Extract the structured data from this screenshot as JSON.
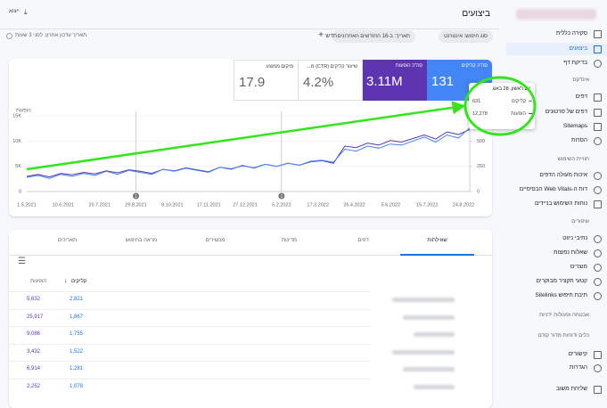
{
  "top_bar": {
    "title": "ביצועים",
    "export": "ייצוא"
  },
  "sidebar": {
    "overview": "סקירה כללית",
    "performance": "ביצועים",
    "url_inspection": "בדיקת דף",
    "index_heading": "אינדקס",
    "pages": "דפים",
    "video_pages": "דפים של סרטונים",
    "sitemaps": "Sitemaps",
    "removals": "הסרות",
    "experience_heading": "חוויית השימוש",
    "page_experience": "איכות מעולה הדפים",
    "core_web_vitals": "דוח ה-Web Vitals הבסיסיים",
    "mobile_usability": "נוחות השימוש בניידים",
    "enhancements_heading": "שיפורים",
    "breadcrumbs": "נתיבי ניווט",
    "faq": "שאלות נפוצות",
    "products": "מוצרים",
    "review_snippets": "קטעי תקציר מבוקרים",
    "sitelinks": "תיבת חיפוש Sitelinks",
    "security": "אבטחה ופעולות ידניות",
    "legacy": "כלים ודוחות מדור קודם",
    "links": "קישורים",
    "settings": "הגדרות",
    "feedback": "שליחת משוב"
  },
  "filters": {
    "search_type": "סוג חיפוש: אינטרנט",
    "date": "תאריך: ב-16 החודשים האחרונים",
    "new": "חדש",
    "last_updated": "תאריך עדכון אחרון: לפני 3 שעות"
  },
  "metrics": [
    {
      "label": "סה\"כ קליקים",
      "value": "131"
    },
    {
      "label": "סה\"כ הופעות",
      "value": "3.11M"
    },
    {
      "label": "שיעור קליקים (CTR) ממוצע",
      "value": "4.2%"
    },
    {
      "label": "מיקום ממוצע",
      "value": "17.9"
    }
  ],
  "chart_data": {
    "type": "line",
    "y_label": "הופעות",
    "x_labels": [
      "1.5.2021",
      "10.6.2021",
      "20.7.2021",
      "29.8.2021",
      "8.10.2021",
      "17.11.2021",
      "27.12.2021",
      "5.2.2022",
      "17.3.2022",
      "26.4.2022",
      "5.6.2022",
      "15.7.2022",
      "24.8.2022"
    ],
    "ylim": [
      0,
      15000
    ],
    "yticks": [
      0,
      {
        "value": 5000,
        "label": "5K"
      },
      {
        "value": 10000,
        "label": "10K"
      },
      {
        "value": 15000,
        "label": "15K"
      }
    ],
    "y2lim": [
      0,
      750
    ],
    "y2ticks": [
      0,
      250,
      500
    ],
    "grid": true,
    "annotations": [
      {
        "x": "29.8.2021",
        "label": "1"
      },
      {
        "x": "5.2.2022",
        "label": "1"
      }
    ],
    "series": [
      {
        "name": "הופעות",
        "color": "#5e35b1",
        "values": [
          3000,
          3400,
          2900,
          3600,
          3300,
          3800,
          3500,
          4100,
          3700,
          4300,
          4000,
          3600,
          4400,
          4100,
          4700,
          4300,
          3900,
          4800,
          4500,
          5100,
          4700,
          5400,
          5000,
          5600,
          5200,
          5900,
          6100,
          5600,
          9000,
          8700,
          9600,
          9200,
          10100,
          9800,
          10500,
          11200,
          10400,
          11800,
          11300,
          12278
        ]
      },
      {
        "name": "קליקים",
        "color": "#4285f4",
        "axis": "y2",
        "values": [
          140,
          160,
          130,
          170,
          150,
          180,
          160,
          200,
          170,
          210,
          190,
          170,
          220,
          200,
          230,
          210,
          190,
          240,
          220,
          260,
          230,
          270,
          250,
          280,
          260,
          300,
          310,
          290,
          420,
          400,
          450,
          430,
          470,
          460,
          500,
          540,
          490,
          560,
          530,
          631
        ]
      }
    ]
  },
  "tooltip": {
    "date": "יום ראשון, 28 באוג"
  },
  "tabs": [
    "שאילתות",
    "דפים",
    "מדינות",
    "מכשירים",
    "מראה בחיפוש",
    "תאריכים"
  ],
  "table": {
    "columns": [
      "קליקים",
      "הופעות"
    ],
    "rows": [
      [
        "2,821",
        "5,632"
      ],
      [
        "1,867",
        "25,917"
      ],
      [
        "1,755",
        "9,086"
      ],
      [
        "1,522",
        "3,432"
      ],
      [
        "1,281",
        "6,914"
      ],
      [
        "1,078",
        "2,252"
      ]
    ]
  }
}
